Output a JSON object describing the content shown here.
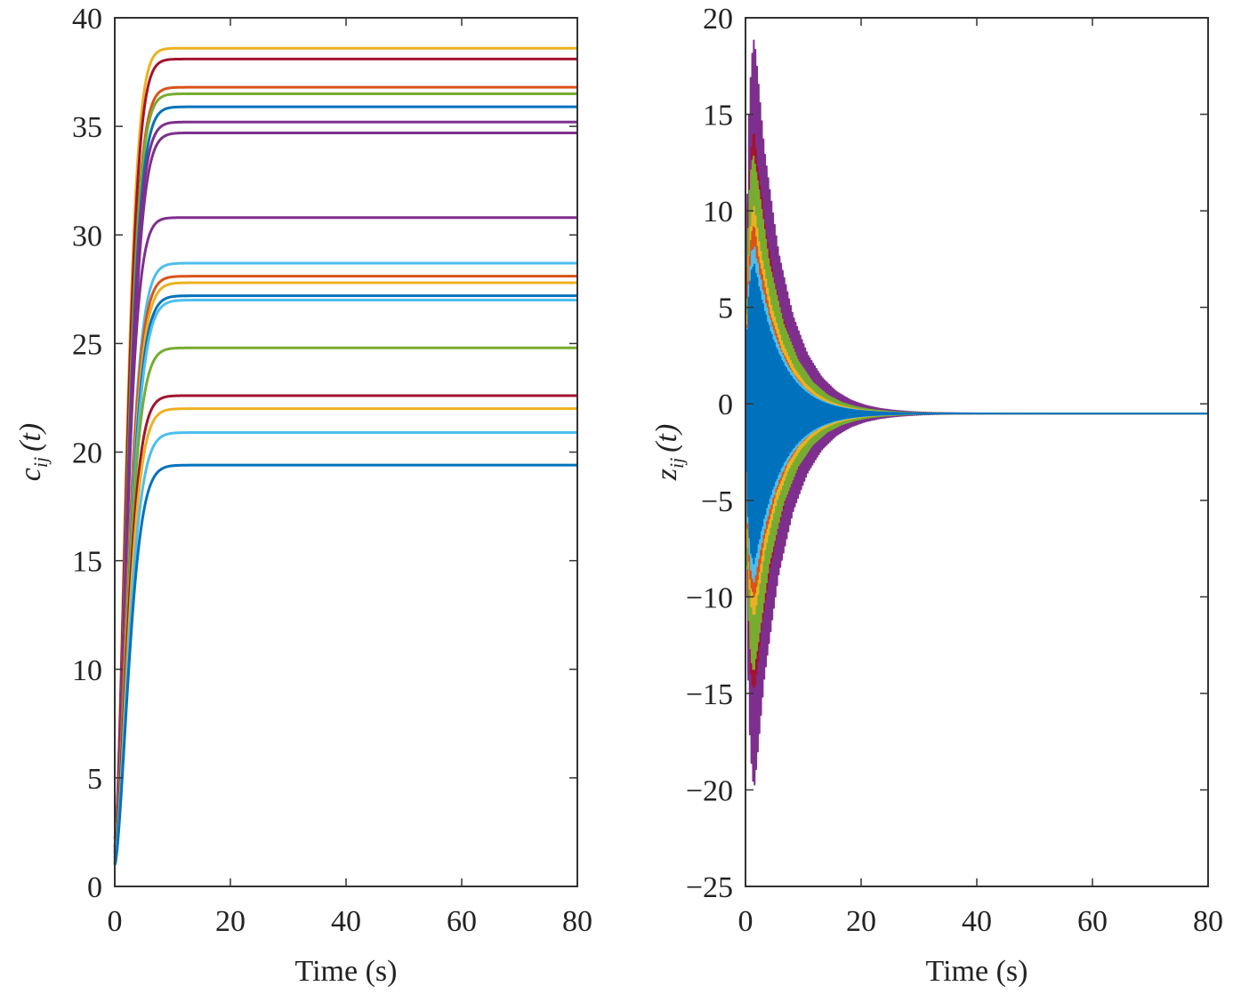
{
  "chart_data": [
    {
      "type": "line",
      "xlabel": "Time (s)",
      "ylabel": {
        "main": "c",
        "sub": "ij",
        "arg": "(t)"
      },
      "xlim": [
        0,
        80
      ],
      "ylim": [
        0,
        40
      ],
      "xticks": [
        "0",
        "20",
        "40",
        "60",
        "80"
      ],
      "yticks": [
        "0",
        "5",
        "10",
        "15",
        "20",
        "25",
        "30",
        "35",
        "40"
      ],
      "grid": false,
      "legend": "none",
      "series": [
        {
          "color": "#EDB120",
          "start": 1.5,
          "final": 38.6,
          "tau": 2.6
        },
        {
          "color": "#A2142F",
          "start": 1.8,
          "final": 38.1,
          "tau": 2.7
        },
        {
          "color": "#D95319",
          "start": 1.2,
          "final": 36.8,
          "tau": 2.8
        },
        {
          "color": "#77AC30",
          "start": 1.0,
          "final": 36.5,
          "tau": 2.8
        },
        {
          "color": "#0072BD",
          "start": 1.3,
          "final": 35.9,
          "tau": 2.9
        },
        {
          "color": "#7E2F8E",
          "start": 1.6,
          "final": 35.2,
          "tau": 2.9
        },
        {
          "color": "#7E2F8E",
          "start": 1.1,
          "final": 34.7,
          "tau": 3.0
        },
        {
          "color": "#7E2F8E",
          "start": 2.2,
          "final": 30.8,
          "tau": 2.7
        },
        {
          "color": "#4DBEEE",
          "start": 1.4,
          "final": 28.7,
          "tau": 3.0
        },
        {
          "color": "#D95319",
          "start": 1.7,
          "final": 28.1,
          "tau": 3.0
        },
        {
          "color": "#EDB120",
          "start": 1.3,
          "final": 27.8,
          "tau": 3.1
        },
        {
          "color": "#0072BD",
          "start": 1.0,
          "final": 27.2,
          "tau": 3.1
        },
        {
          "color": "#4DBEEE",
          "start": 1.2,
          "final": 27.0,
          "tau": 3.2
        },
        {
          "color": "#77AC30",
          "start": 1.9,
          "final": 24.8,
          "tau": 3.0
        },
        {
          "color": "#A2142F",
          "start": 1.5,
          "final": 22.6,
          "tau": 2.9
        },
        {
          "color": "#EDB120",
          "start": 1.1,
          "final": 22.0,
          "tau": 3.0
        },
        {
          "color": "#4DBEEE",
          "start": 1.3,
          "final": 20.9,
          "tau": 3.1
        },
        {
          "color": "#0072BD",
          "start": 1.0,
          "final": 19.4,
          "tau": 3.1
        }
      ]
    },
    {
      "type": "line",
      "xlabel": "Time (s)",
      "ylabel": {
        "main": "z",
        "sub": "ij",
        "arg": "(t)"
      },
      "xlim": [
        0,
        80
      ],
      "ylim": [
        -25,
        20
      ],
      "xticks": [
        "0",
        "20",
        "40",
        "60",
        "80"
      ],
      "yticks": [
        "−25",
        "−20",
        "−15",
        "−10",
        "−5",
        "0",
        "5",
        "10",
        "15",
        "20"
      ],
      "grid": false,
      "legend": "none",
      "final_value": -0.5,
      "series": [
        {
          "color": "#7E2F8E",
          "amplitude": 20.0,
          "decay": 0.2,
          "freq": 3.6,
          "phase": 0.3
        },
        {
          "color": "#A2142F",
          "amplitude": 15.0,
          "decay": 0.22,
          "freq": 3.9,
          "phase": 1.1
        },
        {
          "color": "#77AC30",
          "amplitude": 14.0,
          "decay": 0.21,
          "freq": 4.2,
          "phase": 2.0
        },
        {
          "color": "#EDB120",
          "amplitude": 11.0,
          "decay": 0.22,
          "freq": 3.3,
          "phase": 2.7
        },
        {
          "color": "#D95319",
          "amplitude": 10.0,
          "decay": 0.23,
          "freq": 4.5,
          "phase": 0.8
        },
        {
          "color": "#4DBEEE",
          "amplitude": 9.0,
          "decay": 0.22,
          "freq": 3.7,
          "phase": 1.6
        },
        {
          "color": "#0072BD",
          "amplitude": 8.0,
          "decay": 0.22,
          "freq": 4.0,
          "phase": 0.0
        }
      ]
    }
  ]
}
